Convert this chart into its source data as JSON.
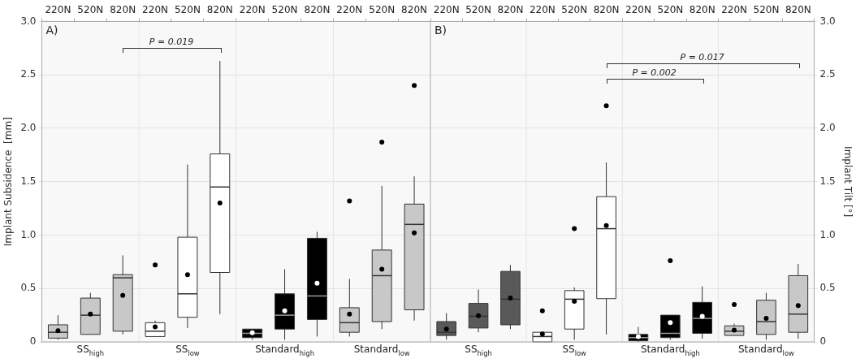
{
  "chart_data": [
    {
      "type": "box",
      "ylabel": "Implant Subsidence  [mm]",
      "ylim": [
        0,
        3
      ],
      "yticks": [
        0,
        {
          "value": 0.5,
          "label": "0.5"
        },
        {
          "value": 1,
          "label": "1.0"
        },
        {
          "value": 1.5,
          "label": "1.5"
        },
        {
          "value": 2,
          "label": "2.0"
        },
        {
          "value": 2.5,
          "label": "2.5"
        },
        {
          "value": 3,
          "label": "3.0"
        }
      ],
      "grid": true,
      "categories": [
        "220N",
        "520N",
        "820N",
        "220N",
        "520N",
        "820N",
        "220N",
        "520N",
        "820N",
        "220N",
        "520N",
        "820N"
      ],
      "annotations": [
        "A)",
        "P = 0.019"
      ],
      "series": [
        {
          "name": "SS$_{high}$",
          "color": "#c8c8c8",
          "boxes": [
            {
              "low": 0.02,
              "q1": 0.035,
              "median": 0.09,
              "q3": 0.16,
              "high": 0.25,
              "mean": 0.105
            },
            {
              "low": 0.07,
              "q1": 0.07,
              "median": 0.25,
              "q3": 0.41,
              "high": 0.46,
              "mean": 0.26
            },
            {
              "low": 0.07,
              "q1": 0.1,
              "median": 0.6,
              "q3": 0.63,
              "high": 0.81,
              "mean": 0.435
            },
            null,
            null,
            null,
            null,
            null,
            null,
            null,
            null,
            null
          ]
        },
        {
          "name": "SS$_{low}$",
          "color": "#ffffff",
          "boxes": [
            null,
            null,
            null,
            {
              "low": 0.05,
              "q1": 0.05,
              "median": 0.1,
              "q3": 0.18,
              "high": 0.2,
              "mean": 0.14,
              "outliers": [
                0.72
              ]
            },
            {
              "low": 0.13,
              "q1": 0.23,
              "median": 0.45,
              "q3": 0.98,
              "high": 1.66,
              "mean": 0.63
            },
            {
              "low": 0.26,
              "q1": 0.65,
              "median": 1.45,
              "q3": 1.76,
              "high": 2.63,
              "mean": 1.3
            },
            null,
            null,
            null,
            null,
            null,
            null
          ]
        },
        {
          "name": "Standard$_{high}$",
          "color": "#000000",
          "boxes": [
            null,
            null,
            null,
            null,
            null,
            null,
            {
              "low": 0.02,
              "q1": 0.04,
              "median": 0.08,
              "q3": 0.12,
              "high": 0.12,
              "mean": 0.085
            },
            {
              "low": 0.02,
              "q1": 0.12,
              "median": 0.25,
              "q3": 0.45,
              "high": 0.68,
              "mean": 0.29
            },
            {
              "low": 0.05,
              "q1": 0.21,
              "median": 0.43,
              "q3": 0.97,
              "high": 1.03,
              "mean": 0.55
            },
            null,
            null,
            null
          ]
        },
        {
          "name": "Standard$_{low}$",
          "color": "#c8c8c8",
          "boxes": [
            null,
            null,
            null,
            null,
            null,
            null,
            null,
            null,
            null,
            {
              "low": 0.05,
              "q1": 0.09,
              "median": 0.18,
              "q3": 0.32,
              "high": 0.59,
              "mean": 0.26,
              "outliers": [
                1.32
              ]
            },
            {
              "low": 0.12,
              "q1": 0.19,
              "median": 0.62,
              "q3": 0.86,
              "high": 1.46,
              "mean": 0.68,
              "outliers": [
                1.87
              ]
            },
            {
              "low": 0.2,
              "q1": 0.3,
              "median": 1.1,
              "q3": 1.29,
              "high": 1.55,
              "mean": 1.02,
              "outliers": [
                2.4
              ]
            }
          ]
        }
      ]
    },
    {
      "type": "box",
      "y2label": "Implant Tilt [°]",
      "y2lim": [
        0,
        3
      ],
      "y2ticks": [
        0,
        {
          "value": 0.5,
          "label": "0.5"
        },
        {
          "value": 1,
          "label": "1.0"
        },
        {
          "value": 1.5,
          "label": "1.5"
        },
        {
          "value": 2,
          "label": "2.0"
        },
        {
          "value": 2.5,
          "label": "2.5"
        },
        {
          "value": 3,
          "label": "3.0"
        }
      ],
      "grid": true,
      "categories": [
        "220N",
        "520N",
        "820N",
        "220N",
        "520N",
        "820N",
        "220N",
        "520N",
        "820N",
        "220N",
        "520N",
        "820N"
      ],
      "annotations": [
        "B)",
        "P = 0.017",
        "P = 0.002"
      ],
      "series": [
        {
          "name": "SS$_{high}$",
          "axis": "y2",
          "color": "#595959",
          "boxes": [
            {
              "low": 0.02,
              "q1": 0.06,
              "median": 0.09,
              "q3": 0.19,
              "high": 0.27,
              "mean": 0.12
            },
            {
              "low": 0.09,
              "q1": 0.13,
              "median": 0.24,
              "q3": 0.36,
              "high": 0.49,
              "mean": 0.245
            },
            {
              "low": 0.12,
              "q1": 0.16,
              "median": 0.4,
              "q3": 0.66,
              "high": 0.72,
              "mean": 0.41
            },
            null,
            null,
            null,
            null,
            null,
            null,
            null,
            null,
            null
          ]
        },
        {
          "name": "SS$_{low}$",
          "axis": "y2",
          "color": "#ffffff",
          "boxes": [
            null,
            null,
            null,
            {
              "low": 0,
              "q1": 0,
              "median": 0.05,
              "q3": 0.09,
              "high": 0.09,
              "mean": 0.075,
              "outliers": [
                0.29
              ]
            },
            {
              "low": 0.02,
              "q1": 0.12,
              "median": 0.4,
              "q3": 0.48,
              "high": 0.51,
              "mean": 0.38,
              "outliers": [
                1.06
              ]
            },
            {
              "low": 0.07,
              "q1": 0.405,
              "median": 1.06,
              "q3": 1.36,
              "high": 1.68,
              "mean": 1.09,
              "outliers": [
                2.21
              ]
            },
            null,
            null,
            null,
            null,
            null,
            null
          ]
        },
        {
          "name": "Standard$_{high}$",
          "axis": "y2",
          "color": "#000000",
          "boxes": [
            null,
            null,
            null,
            null,
            null,
            null,
            {
              "low": 0,
              "q1": 0.01,
              "median": 0.04,
              "q3": 0.07,
              "high": 0.14,
              "mean": 0.05
            },
            {
              "low": 0.02,
              "q1": 0.04,
              "median": 0.08,
              "q3": 0.25,
              "high": 0.25,
              "mean": 0.18,
              "outliers": [
                0.76
              ]
            },
            {
              "low": 0.03,
              "q1": 0.08,
              "median": 0.22,
              "q3": 0.37,
              "high": 0.52,
              "mean": 0.24
            },
            null,
            null,
            null
          ]
        },
        {
          "name": "Standard$_{low}$",
          "axis": "y2",
          "color": "#c8c8c8",
          "boxes": [
            null,
            null,
            null,
            null,
            null,
            null,
            null,
            null,
            null,
            {
              "low": 0.06,
              "q1": 0.06,
              "median": 0.1,
              "q3": 0.15,
              "high": 0.17,
              "mean": 0.11,
              "outliers": [
                0.35
              ]
            },
            {
              "low": 0.02,
              "q1": 0.07,
              "median": 0.19,
              "q3": 0.39,
              "high": 0.46,
              "mean": 0.22
            },
            {
              "low": 0.03,
              "q1": 0.09,
              "median": 0.26,
              "q3": 0.62,
              "high": 0.73,
              "mean": 0.34
            }
          ]
        }
      ]
    }
  ]
}
